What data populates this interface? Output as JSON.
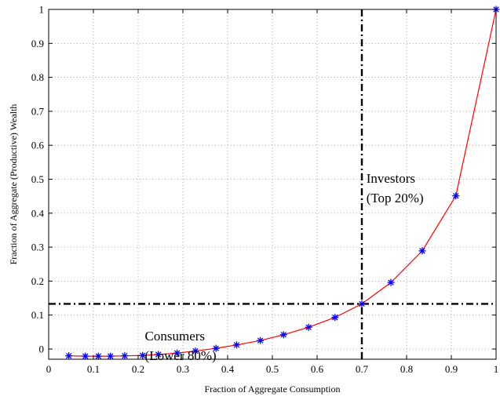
{
  "chart_data": {
    "type": "line",
    "xlabel": "Fraction of Aggregate Consumption",
    "ylabel": "Fraction of Aggregate (Productive) Wealth",
    "xlim": [
      0,
      1
    ],
    "ylim": [
      -0.03,
      1
    ],
    "xticks": [
      "0",
      "0.1",
      "0.2",
      "0.3",
      "0.4",
      "0.5",
      "0.6",
      "0.7",
      "0.8",
      "0.9",
      "1"
    ],
    "yticks": [
      "0",
      "0.1",
      "0.2",
      "0.3",
      "0.4",
      "0.5",
      "0.6",
      "0.7",
      "0.8",
      "0.9",
      "1"
    ],
    "grid": true,
    "series": [
      {
        "line_color": "#ff0000",
        "marker_color": "#0000ff",
        "marker": "asterisk",
        "x": [
          0.045,
          0.082,
          0.111,
          0.138,
          0.17,
          0.21,
          0.245,
          0.287,
          0.328,
          0.374,
          0.42,
          0.473,
          0.525,
          0.581,
          0.64,
          0.7,
          0.765,
          0.835,
          0.91,
          1.0
        ],
        "y": [
          -0.02,
          -0.021,
          -0.021,
          -0.021,
          -0.02,
          -0.019,
          -0.016,
          -0.012,
          -0.006,
          0.002,
          0.012,
          0.025,
          0.042,
          0.064,
          0.093,
          0.133,
          0.196,
          0.289,
          0.451,
          1.0
        ]
      }
    ],
    "reference_lines": [
      {
        "orientation": "vertical",
        "value": 0.7
      },
      {
        "orientation": "horizontal",
        "value": 0.133
      }
    ],
    "annotations": [
      {
        "lines": [
          "Investors",
          "(Top 20%)"
        ],
        "x": 0.71,
        "y": 0.49
      },
      {
        "lines": [
          "Consumers",
          "(Lower 80%)"
        ],
        "x": 0.215,
        "y": 0.025
      }
    ]
  }
}
